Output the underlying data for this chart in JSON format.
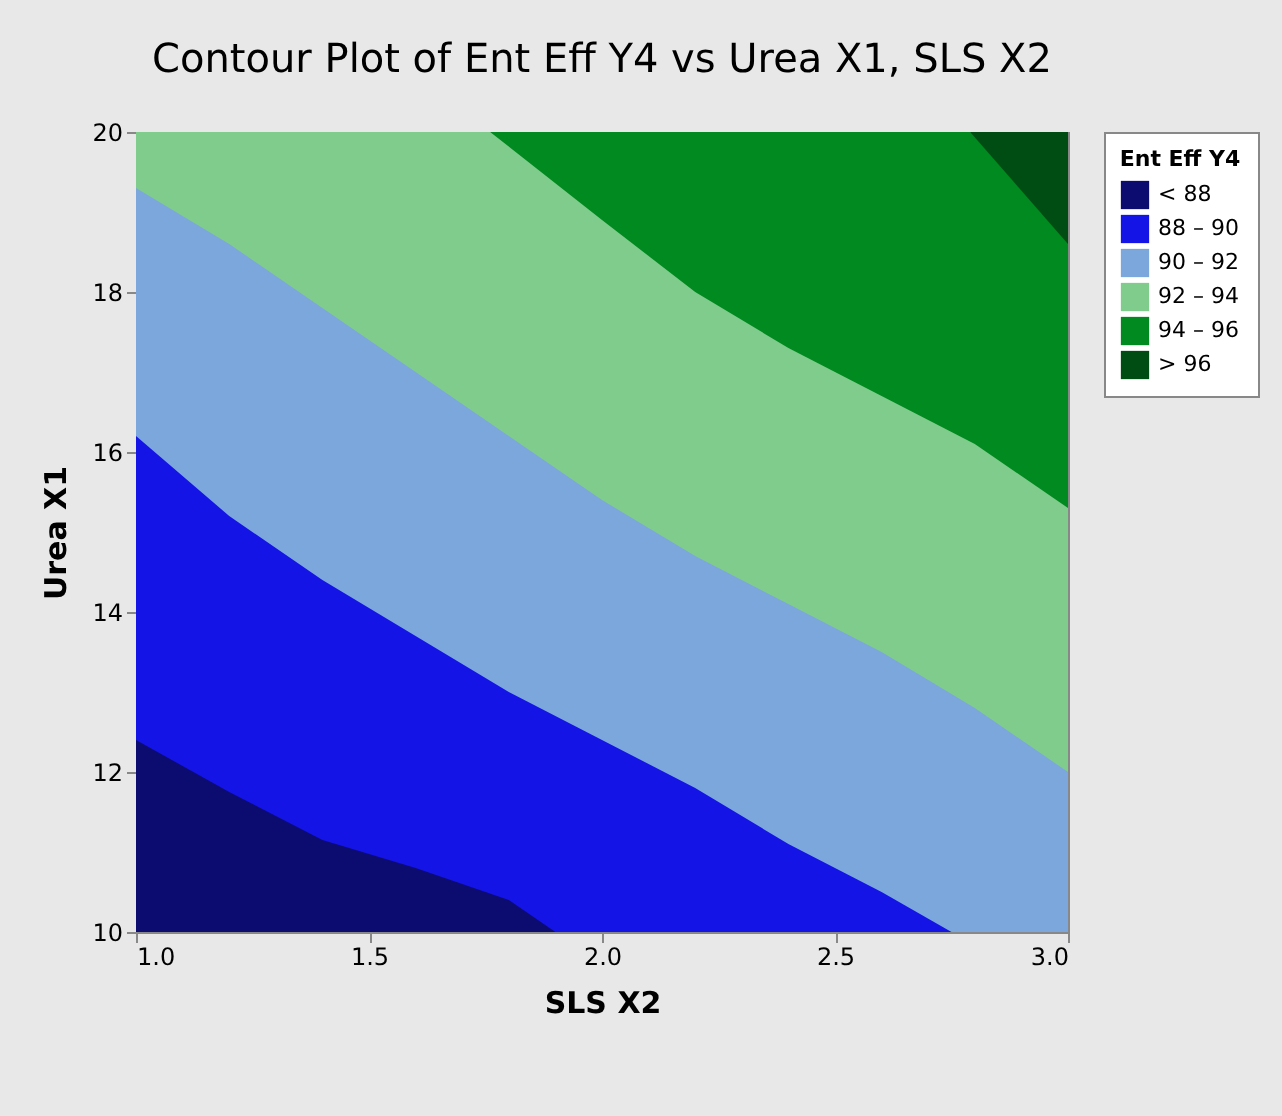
{
  "chart_data": {
    "type": "area",
    "title": "Contour Plot of Ent Eff Y4 vs Urea X1, SLS X2",
    "xlabel": "SLS X2",
    "ylabel": "Urea X1",
    "legend_title": "Ent Eff Y4",
    "legend": "top right",
    "x": [
      1.0,
      1.2,
      1.4,
      1.6,
      1.8,
      2.0,
      2.2,
      2.4,
      2.6,
      2.8,
      3.0
    ],
    "xlim": [
      1.0,
      3.0
    ],
    "xticks": [
      {
        "value": 1,
        "label": "1.0"
      },
      1.5,
      {
        "value": 2,
        "label": "2.0"
      },
      2.5,
      {
        "value": 3,
        "label": "3.0"
      }
    ],
    "ylim": [
      10,
      20
    ],
    "yticks": [
      10,
      12,
      14,
      16,
      18,
      20
    ],
    "series": [
      {
        "name": "< 88",
        "color": "#0c0c70",
        "x": [
          1.0,
          1.2,
          1.4,
          1.6,
          1.8,
          1.9
        ],
        "values": [
          12.4,
          11.75,
          11.15,
          10.8,
          10.4,
          10
        ]
      },
      {
        "name": "88 – 90",
        "color": "#1414e6",
        "x": [
          1.0,
          1.2,
          1.4,
          1.6,
          1.8,
          2.0,
          2.2,
          2.4,
          2.6,
          2.75
        ],
        "values": [
          16.2,
          15.2,
          14.4,
          13.7,
          13.0,
          12.4,
          11.8,
          11.1,
          10.5,
          10
        ]
      },
      {
        "name": "90 – 92",
        "color": "#7ba7dc",
        "values": [
          19.3,
          18.6,
          17.8,
          17.0,
          16.2,
          15.4,
          14.7,
          14.1,
          13.5,
          12.8,
          12.0
        ]
      },
      {
        "name": "92 – 94",
        "color": "#80cc8c",
        "x": [
          1.0,
          1.2,
          1.4,
          1.6,
          1.76,
          2.0,
          2.2,
          2.4,
          2.6,
          2.8,
          3.0
        ],
        "values": [
          20,
          20,
          20,
          20,
          20,
          18.9,
          18.0,
          17.3,
          16.7,
          16.1,
          15.3
        ]
      },
      {
        "name": "94 – 96",
        "color": "#008a20",
        "x": [
          1.76,
          2.0,
          2.2,
          2.4,
          2.6,
          2.79,
          3.0
        ],
        "values": [
          20,
          20,
          20,
          20,
          20,
          20,
          18.6
        ]
      },
      {
        "name": "> 96",
        "color": "#004d14",
        "x": [
          2.79,
          3.0
        ],
        "values": [
          20,
          20
        ]
      }
    ]
  }
}
